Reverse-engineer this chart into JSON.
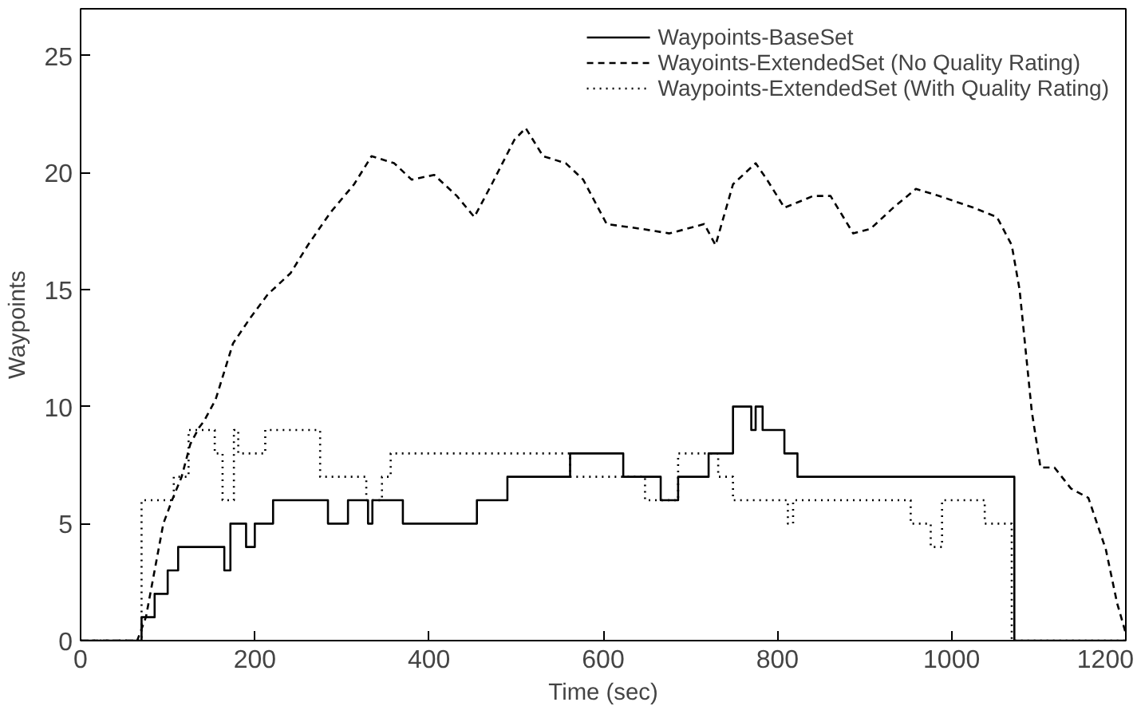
{
  "chart_data": {
    "type": "line",
    "xlabel": "Time (sec)",
    "ylabel": "Waypoints",
    "xlim": [
      0,
      1200
    ],
    "ylim": [
      0,
      27
    ],
    "xticks": [
      0,
      200,
      400,
      600,
      800,
      1000,
      1200
    ],
    "yticks": [
      0,
      5,
      10,
      15,
      20,
      25
    ],
    "grid": false,
    "legend": "top right",
    "series": [
      {
        "name": "Waypoints-BaseSet",
        "type": "step",
        "line_style": "solid",
        "color": "#000000",
        "x": [
          0,
          70,
          85,
          100,
          112,
          165,
          172,
          190,
          200,
          221,
          284,
          307,
          330,
          335,
          340,
          370,
          455,
          490,
          562,
          623,
          666,
          686,
          721,
          749,
          770,
          775,
          783,
          808,
          823,
          1072,
          1200
        ],
        "values": [
          0,
          1,
          2,
          3,
          4,
          3,
          5,
          4,
          5,
          6,
          5,
          6,
          5,
          6,
          6,
          5,
          6,
          7,
          8,
          7,
          6,
          7,
          8,
          10,
          9,
          10,
          9,
          8,
          7,
          0,
          0
        ]
      },
      {
        "name": "Wayoints-ExtendedSet (No Quality Rating)",
        "line_style": "dashed",
        "color": "#000000",
        "x": [
          0,
          65,
          75,
          85,
          95,
          105,
          116,
          126,
          136,
          142,
          155,
          175,
          195,
          215,
          241,
          261,
          287,
          314,
          334,
          360,
          380,
          406,
          432,
          452,
          472,
          498,
          511,
          531,
          557,
          577,
          604,
          643,
          676,
          716,
          729,
          749,
          775,
          788,
          808,
          841,
          861,
          887,
          907,
          933,
          959,
          986,
          1025,
          1052,
          1069,
          1078,
          1085,
          1092,
          1102,
          1118,
          1137,
          1157,
          1177,
          1190,
          1200
        ],
        "values": [
          0,
          0,
          1,
          3,
          5,
          6,
          7.0,
          8.4,
          9.1,
          9.4,
          10.3,
          12.7,
          13.8,
          14.8,
          15.7,
          16.9,
          18.3,
          19.5,
          20.7,
          20.4,
          19.7,
          19.9,
          19.0,
          18.1,
          19.5,
          21.4,
          21.9,
          20.7,
          20.4,
          19.7,
          17.8,
          17.6,
          17.4,
          17.8,
          16.9,
          19.5,
          20.4,
          19.7,
          18.5,
          19.0,
          19.0,
          17.4,
          17.6,
          18.5,
          19.3,
          19.0,
          18.5,
          18.1,
          16.9,
          15.0,
          12.4,
          9.8,
          7.4,
          7.4,
          6.5,
          6.1,
          3.9,
          1.6,
          0.3
        ]
      },
      {
        "name": "Waypoints-ExtendedSet (With Quality Rating)",
        "type": "step",
        "line_style": "dotted",
        "color": "#000000",
        "x": [
          0,
          70,
          107,
          124,
          154,
          163,
          170,
          176,
          181,
          212,
          275,
          328,
          346,
          356,
          562,
          648,
          669,
          686,
          732,
          749,
          812,
          818,
          953,
          976,
          989,
          1038,
          1069,
          1200
        ],
        "values": [
          0,
          6,
          7,
          9,
          8,
          6,
          6,
          9,
          8,
          9,
          7,
          6,
          7,
          8,
          7,
          6,
          6,
          8,
          7,
          6,
          5,
          6,
          5,
          4,
          6,
          5,
          0,
          0
        ]
      }
    ]
  }
}
